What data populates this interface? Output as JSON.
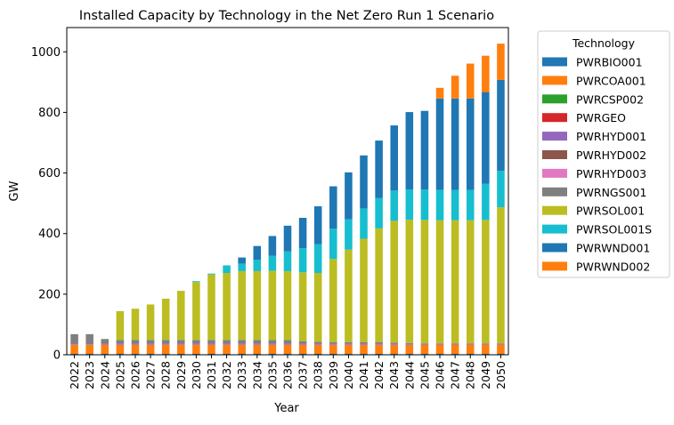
{
  "chart_data": {
    "type": "bar",
    "stacked": true,
    "title": "Installed Capacity by Technology in the Net Zero Run 1 Scenario",
    "xlabel": "Year",
    "ylabel": "GW",
    "ylim": [
      0,
      1080
    ],
    "yticks": [
      0,
      200,
      400,
      600,
      800,
      1000
    ],
    "grid": false,
    "legend": {
      "title": "Technology",
      "placement": "outside-right"
    },
    "categories": [
      "2022",
      "2023",
      "2024",
      "2025",
      "2026",
      "2027",
      "2028",
      "2029",
      "2030",
      "2031",
      "2032",
      "2033",
      "2034",
      "2035",
      "2036",
      "2037",
      "2038",
      "2039",
      "2040",
      "2041",
      "2042",
      "2043",
      "2044",
      "2045",
      "2046",
      "2047",
      "2048",
      "2049",
      "2050"
    ],
    "series": [
      {
        "name": "PWRBIO001",
        "color": "#1f77b4",
        "values": [
          3,
          3,
          3,
          3,
          3,
          3,
          3,
          3,
          3,
          3,
          3,
          3,
          3,
          3,
          3,
          3,
          3,
          3,
          3,
          3,
          3,
          3,
          3,
          3,
          3,
          3,
          3,
          3,
          3
        ]
      },
      {
        "name": "PWRCOA001",
        "color": "#ff7f0e",
        "values": [
          30,
          30,
          30,
          30,
          30,
          30,
          30,
          30,
          30,
          30,
          30,
          30,
          30,
          30,
          30,
          30,
          30,
          30,
          30,
          30,
          30,
          30,
          30,
          30,
          30,
          30,
          30,
          30,
          30
        ]
      },
      {
        "name": "PWRCSP002",
        "color": "#2ca02c",
        "values": [
          1,
          1,
          0,
          0,
          0,
          0,
          0,
          0,
          0,
          0,
          0,
          0,
          0,
          0,
          0,
          0,
          0,
          0,
          0,
          0,
          0,
          0,
          0,
          0,
          0,
          0,
          0,
          0,
          0
        ]
      },
      {
        "name": "PWRGEO",
        "color": "#d62728",
        "values": [
          0,
          0,
          0,
          0,
          0,
          0,
          0,
          0,
          0,
          0,
          0,
          0,
          0,
          0,
          0,
          0,
          0,
          0,
          0,
          0,
          0,
          0,
          0,
          0,
          0,
          0,
          0,
          0,
          0
        ]
      },
      {
        "name": "PWRHYD001",
        "color": "#9467bd",
        "values": [
          4,
          4,
          4,
          4,
          4,
          4,
          4,
          4,
          4,
          4,
          4,
          4,
          4,
          4,
          4,
          4,
          4,
          4,
          4,
          4,
          4,
          4,
          4,
          4,
          4,
          4,
          4,
          4,
          4
        ]
      },
      {
        "name": "PWRHYD002",
        "color": "#8c564b",
        "values": [
          0,
          0,
          0,
          0,
          0,
          0,
          0,
          0,
          0,
          0,
          0,
          0,
          0,
          0,
          0,
          0,
          0,
          0,
          0,
          0,
          0,
          0,
          0,
          0,
          0,
          0,
          0,
          0,
          0
        ]
      },
      {
        "name": "PWRHYD003",
        "color": "#e377c2",
        "values": [
          0,
          0,
          0,
          0,
          0,
          0,
          0,
          0,
          0,
          0,
          0,
          0,
          0,
          0,
          0,
          0,
          0,
          0,
          0,
          0,
          0,
          0,
          0,
          0,
          0,
          0,
          0,
          0,
          0
        ]
      },
      {
        "name": "PWRNGS001",
        "color": "#7f7f7f",
        "values": [
          30,
          30,
          15,
          12,
          12,
          12,
          12,
          12,
          12,
          12,
          12,
          12,
          12,
          12,
          12,
          8,
          6,
          5,
          5,
          5,
          5,
          3,
          2,
          0,
          0,
          0,
          0,
          0,
          0
        ]
      },
      {
        "name": "PWRSOL001",
        "color": "#bcbd22",
        "values": [
          0,
          0,
          0,
          95,
          103,
          117,
          136,
          162,
          191,
          216,
          221,
          227,
          227,
          228,
          227,
          227,
          227,
          274,
          305,
          341,
          375,
          402,
          407,
          408,
          407,
          407,
          407,
          408,
          450
        ]
      },
      {
        "name": "PWRSOL001S",
        "color": "#17becf",
        "values": [
          0,
          0,
          0,
          0,
          0,
          0,
          0,
          0,
          3,
          3,
          25,
          25,
          38,
          50,
          65,
          80,
          95,
          100,
          100,
          100,
          100,
          100,
          100,
          100,
          100,
          100,
          100,
          120,
          120
        ]
      },
      {
        "name": "PWRWND001",
        "color": "#1f77b4",
        "values": [
          0,
          0,
          0,
          0,
          0,
          0,
          0,
          0,
          0,
          0,
          0,
          20,
          45,
          65,
          85,
          100,
          125,
          140,
          155,
          175,
          190,
          215,
          255,
          260,
          302,
          302,
          302,
          302,
          300
        ]
      },
      {
        "name": "PWRWND002",
        "color": "#ff7f0e",
        "values": [
          0,
          0,
          0,
          0,
          0,
          0,
          0,
          0,
          0,
          0,
          0,
          0,
          0,
          0,
          0,
          0,
          0,
          0,
          0,
          0,
          0,
          0,
          0,
          0,
          35,
          75,
          115,
          120,
          120
        ]
      }
    ]
  }
}
